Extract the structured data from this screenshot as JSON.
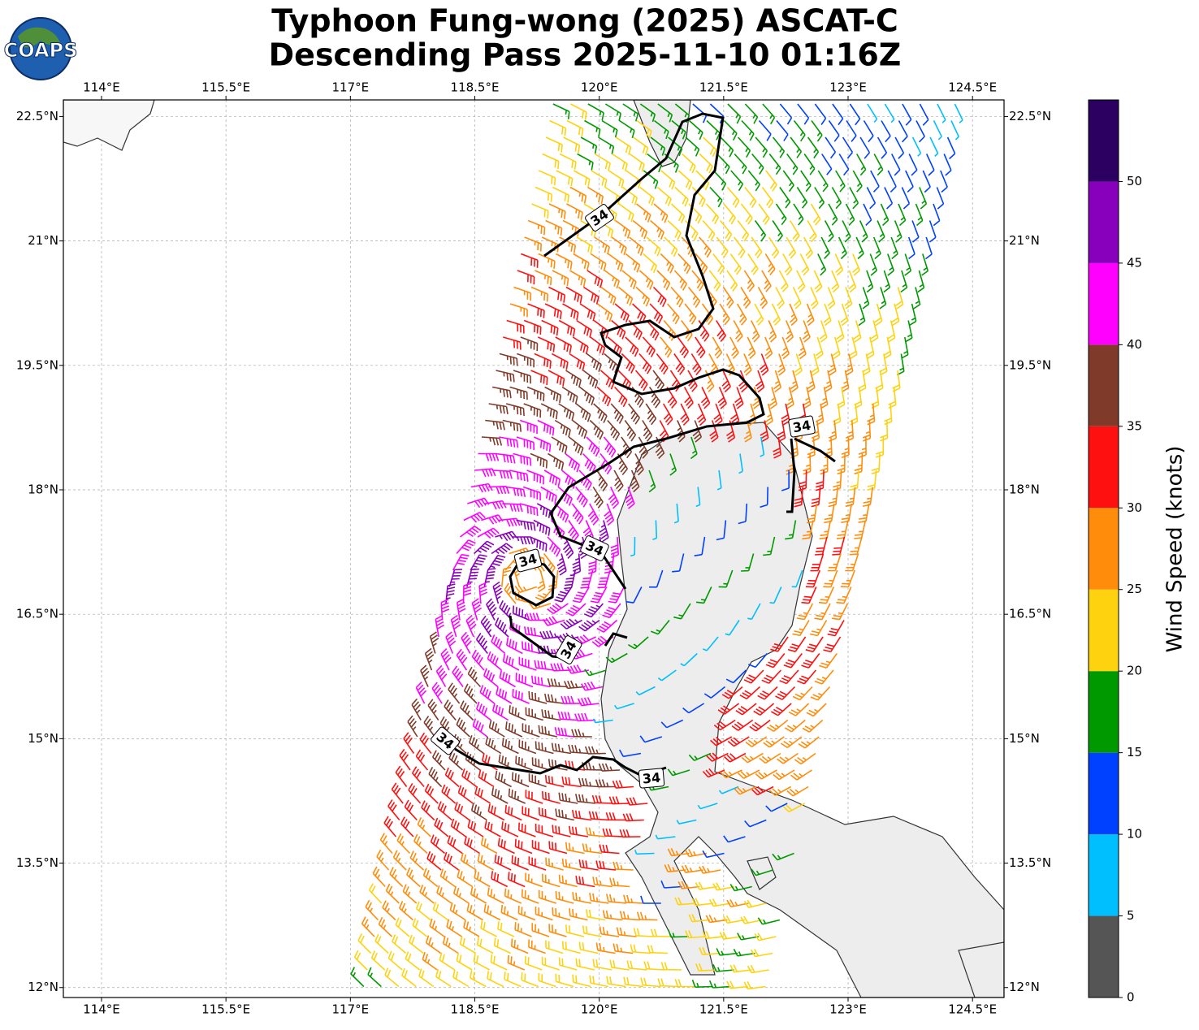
{
  "header": {
    "title": [
      "Typhoon Fung-wong (2025) ASCAT-C",
      "Descending Pass 2025-11-10 01:16Z"
    ],
    "logo": "COAPS"
  },
  "map": {
    "xlim": [
      113.54,
      124.88
    ],
    "ylim": [
      11.88,
      22.7
    ],
    "xticks": [
      {
        "value": 114,
        "label": "114°E"
      },
      {
        "value": 115.5,
        "label": "115.5°E"
      },
      {
        "value": 117,
        "label": "117°E"
      },
      {
        "value": 118.5,
        "label": "118.5°E"
      },
      {
        "value": 120,
        "label": "120°E"
      },
      {
        "value": 121.5,
        "label": "121.5°E"
      },
      {
        "value": 123,
        "label": "123°E"
      },
      {
        "value": 124.5,
        "label": "124.5°E"
      }
    ],
    "yticks": [
      {
        "value": 12,
        "label": "12°N"
      },
      {
        "value": 13.5,
        "label": "13.5°N"
      },
      {
        "value": 15,
        "label": "15°N"
      },
      {
        "value": 16.5,
        "label": "16.5°N"
      },
      {
        "value": 18,
        "label": "18°N"
      },
      {
        "value": 19.5,
        "label": "19.5°N"
      },
      {
        "value": 21,
        "label": "21°N"
      },
      {
        "value": 22.5,
        "label": "22.5°N"
      }
    ],
    "contour_labels": [
      "34",
      "34",
      "34",
      "34",
      "34",
      "34",
      "34"
    ]
  },
  "colorbar": {
    "title": "Wind Speed (knots)",
    "clim": [
      0,
      55
    ],
    "ticks": [
      0,
      5,
      10,
      15,
      20,
      25,
      30,
      35,
      40,
      45,
      50
    ],
    "colors": [
      "#555555",
      "#00bfff",
      "#0040ff",
      "#009900",
      "#ffd20f",
      "#ff8c0a",
      "#ff1010",
      "#7f3a2a",
      "#ff00ff",
      "#8800bb",
      "#2c0060"
    ]
  }
}
